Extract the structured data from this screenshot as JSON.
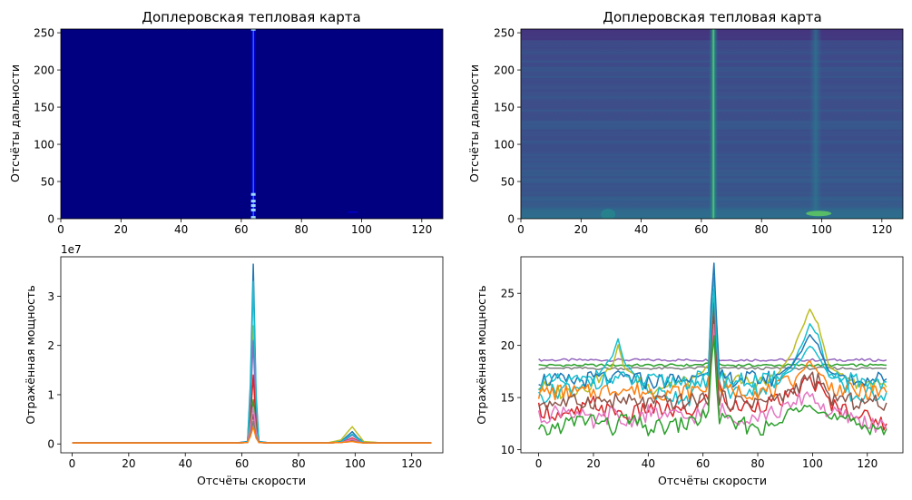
{
  "chart_data": [
    {
      "type": "heatmap",
      "title": "Доплеровская тепловая карта",
      "xlabel": "",
      "ylabel": "Отсчёты дальности",
      "xlim": [
        0,
        127
      ],
      "ylim": [
        0,
        255
      ],
      "xticks": [
        "0",
        "20",
        "40",
        "60",
        "80",
        "100",
        "120"
      ],
      "yticks": [
        "0",
        "50",
        "100",
        "150",
        "200",
        "250"
      ],
      "colormap": "jet",
      "background_color": "#000080",
      "features": [
        {
          "doppler_bin": 64,
          "range_bins": [
            0,
            2,
            12,
            18,
            24,
            33,
            255
          ],
          "note": "narrow bright column"
        },
        {
          "doppler_bin": 97,
          "range_bins": [
            8,
            10
          ],
          "note": "weak spot"
        }
      ]
    },
    {
      "type": "heatmap",
      "title": "Доплеровская тепловая карта",
      "xlabel": "",
      "ylabel": "Отсчёты дальности",
      "xlim": [
        0,
        127
      ],
      "ylim": [
        0,
        255
      ],
      "xticks": [
        "0",
        "20",
        "40",
        "60",
        "80",
        "100",
        "120"
      ],
      "yticks": [
        "0",
        "50",
        "100",
        "150",
        "200",
        "250"
      ],
      "colormap": "viridis",
      "background_color": "#3b528b",
      "features": [
        {
          "doppler_bin": 64,
          "range_bins": [
            0,
            255
          ],
          "note": "bright vertical column"
        },
        {
          "doppler_bin": 98,
          "range_bins": [
            0,
            255
          ],
          "note": "faint vertical column"
        },
        {
          "doppler_bin": 99,
          "range_bins": [
            6,
            8
          ],
          "note": "bright spot"
        },
        {
          "doppler_bin": 29,
          "range_bins": [
            0,
            12
          ],
          "note": "faint spot"
        }
      ]
    },
    {
      "type": "line",
      "title": "",
      "xlabel": "Отсчёты скорости",
      "ylabel": "Отражённая мощность",
      "offset_label": "1e7",
      "xlim": [
        -4,
        131
      ],
      "ylim": [
        -0.18,
        3.8
      ],
      "xticks": [
        "0",
        "20",
        "40",
        "60",
        "80",
        "100",
        "120"
      ],
      "yticks": [
        "0",
        "1",
        "2",
        "3"
      ],
      "series_summary": {
        "count": 256,
        "baseline": 0.02,
        "peaks": [
          {
            "x": 64,
            "y": 3.65
          },
          {
            "x": 99,
            "y": 0.35
          },
          {
            "x": 29,
            "y": 0.06
          }
        ]
      },
      "x": [
        0,
        20,
        40,
        58,
        62,
        63,
        64,
        65,
        66,
        70,
        90,
        95,
        97,
        99,
        101,
        103,
        110,
        127
      ],
      "series": [
        {
          "color": "#1f77b4",
          "values": [
            0.02,
            0.02,
            0.02,
            0.02,
            0.05,
            1.2,
            3.65,
            1.0,
            0.05,
            0.02,
            0.02,
            0.05,
            0.15,
            0.25,
            0.12,
            0.04,
            0.02,
            0.02
          ]
        },
        {
          "color": "#bcbd22",
          "values": [
            0.02,
            0.02,
            0.02,
            0.02,
            0.04,
            0.9,
            2.4,
            0.7,
            0.04,
            0.02,
            0.02,
            0.08,
            0.22,
            0.35,
            0.2,
            0.05,
            0.02,
            0.02
          ]
        },
        {
          "color": "#9467bd",
          "values": [
            0.02,
            0.02,
            0.02,
            0.02,
            0.04,
            0.8,
            2.1,
            0.6,
            0.04,
            0.02,
            0.02,
            0.04,
            0.1,
            0.18,
            0.09,
            0.03,
            0.02,
            0.02
          ]
        },
        {
          "color": "#d62728",
          "values": [
            0.02,
            0.02,
            0.02,
            0.02,
            0.03,
            0.5,
            1.4,
            0.4,
            0.03,
            0.02,
            0.02,
            0.03,
            0.07,
            0.12,
            0.06,
            0.03,
            0.02,
            0.02
          ]
        },
        {
          "color": "#17becf",
          "values": [
            0.02,
            0.02,
            0.02,
            0.02,
            0.04,
            1.0,
            3.3,
            0.9,
            0.04,
            0.02,
            0.02,
            0.04,
            0.12,
            0.2,
            0.1,
            0.03,
            0.02,
            0.02
          ]
        },
        {
          "color": "#2ca02c",
          "values": [
            0.02,
            0.02,
            0.02,
            0.02,
            0.03,
            0.4,
            0.9,
            0.3,
            0.03,
            0.02,
            0.02,
            0.03,
            0.05,
            0.08,
            0.05,
            0.02,
            0.02,
            0.02
          ]
        },
        {
          "color": "#8c564b",
          "values": [
            0.02,
            0.02,
            0.02,
            0.02,
            0.03,
            0.3,
            0.6,
            0.2,
            0.03,
            0.02,
            0.02,
            0.03,
            0.05,
            0.07,
            0.04,
            0.02,
            0.02,
            0.02
          ]
        },
        {
          "color": "#e377c2",
          "values": [
            0.02,
            0.02,
            0.02,
            0.02,
            0.03,
            0.35,
            0.75,
            0.25,
            0.03,
            0.02,
            0.02,
            0.03,
            0.06,
            0.1,
            0.05,
            0.02,
            0.02,
            0.02
          ]
        },
        {
          "color": "#7f7f7f",
          "values": [
            0.02,
            0.02,
            0.02,
            0.02,
            0.03,
            0.2,
            0.45,
            0.15,
            0.03,
            0.02,
            0.02,
            0.03,
            0.04,
            0.06,
            0.04,
            0.02,
            0.02,
            0.02
          ]
        },
        {
          "color": "#ff7f0e",
          "values": [
            0.02,
            0.02,
            0.02,
            0.02,
            0.03,
            0.15,
            0.35,
            0.12,
            0.03,
            0.02,
            0.02,
            0.03,
            0.04,
            0.05,
            0.03,
            0.02,
            0.02,
            0.02
          ]
        }
      ]
    },
    {
      "type": "line",
      "title": "",
      "xlabel": "Отсчёты скорости",
      "ylabel": "Отражённая мощность",
      "xlim": [
        -6.5,
        133
      ],
      "ylim": [
        9.7,
        28.5
      ],
      "xticks": [
        "0",
        "20",
        "40",
        "60",
        "80",
        "100",
        "120"
      ],
      "yticks": [
        "10",
        "15",
        "20",
        "25"
      ],
      "series_summary": {
        "count": 256,
        "level_range": [
          12,
          18.7
        ],
        "peaks": [
          {
            "x": 64,
            "y": 27.8
          },
          {
            "x": 99,
            "y": 23.6
          },
          {
            "x": 29,
            "y": 20.7
          }
        ]
      },
      "x": [
        0,
        10,
        20,
        27,
        29,
        31,
        40,
        55,
        62,
        63,
        64,
        65,
        66,
        70,
        85,
        92,
        96,
        99,
        102,
        106,
        115,
        127
      ],
      "series": [
        {
          "color": "#9467bd",
          "values": [
            18.6,
            18.6,
            18.6,
            18.6,
            18.6,
            18.6,
            18.6,
            18.6,
            18.6,
            19.0,
            20.5,
            19.0,
            18.6,
            18.6,
            18.6,
            18.6,
            18.6,
            18.6,
            18.6,
            18.6,
            18.6,
            18.6
          ]
        },
        {
          "color": "#2ca02c",
          "values": [
            18.1,
            18.1,
            18.1,
            18.1,
            18.1,
            18.1,
            18.1,
            18.1,
            18.2,
            19.5,
            22.0,
            19.0,
            18.1,
            18.1,
            18.1,
            18.1,
            18.1,
            18.1,
            18.1,
            18.1,
            18.1,
            18.1
          ]
        },
        {
          "color": "#7f7f7f",
          "values": [
            17.8,
            17.8,
            17.8,
            17.8,
            17.8,
            17.8,
            17.8,
            17.8,
            17.9,
            19.0,
            21.0,
            18.7,
            17.8,
            17.8,
            17.8,
            17.8,
            17.8,
            17.8,
            17.8,
            17.8,
            17.8,
            17.8
          ]
        },
        {
          "color": "#bcbd22",
          "values": [
            16.0,
            15.5,
            16.5,
            18.0,
            20.0,
            18.0,
            16.0,
            16.5,
            18.0,
            23.0,
            25.0,
            22.0,
            17.0,
            16.5,
            16.5,
            19.0,
            21.5,
            23.6,
            22.0,
            18.0,
            16.5,
            16.0
          ]
        },
        {
          "color": "#17becf",
          "values": [
            15.0,
            16.0,
            16.5,
            19.0,
            20.7,
            18.5,
            15.5,
            15.0,
            17.0,
            24.0,
            26.5,
            21.0,
            16.0,
            15.5,
            16.0,
            18.0,
            20.0,
            22.0,
            21.0,
            17.0,
            15.0,
            15.5
          ]
        },
        {
          "color": "#1f77b4",
          "values": [
            16.8,
            16.5,
            16.8,
            17.0,
            17.5,
            17.0,
            16.5,
            16.8,
            17.5,
            24.0,
            27.8,
            22.0,
            17.0,
            16.8,
            16.8,
            18.0,
            19.5,
            21.0,
            20.0,
            17.5,
            16.8,
            16.8
          ]
        },
        {
          "color": "#d62728",
          "values": [
            14.0,
            13.0,
            14.5,
            13.5,
            14.0,
            13.0,
            14.0,
            13.5,
            15.0,
            20.0,
            23.0,
            18.0,
            16.0,
            14.0,
            14.5,
            15.0,
            16.0,
            17.0,
            16.0,
            14.5,
            13.5,
            12.5
          ]
        },
        {
          "color": "#ff7f0e",
          "values": [
            15.5,
            15.5,
            15.5,
            15.8,
            16.0,
            15.8,
            15.5,
            15.6,
            16.0,
            21.0,
            24.5,
            19.0,
            16.0,
            15.6,
            15.6,
            16.5,
            17.5,
            18.5,
            17.5,
            16.0,
            15.6,
            15.5
          ]
        },
        {
          "color": "#e377c2",
          "values": [
            13.0,
            14.0,
            12.5,
            13.5,
            13.0,
            12.5,
            13.5,
            13.0,
            14.0,
            19.0,
            22.0,
            17.0,
            14.0,
            13.0,
            13.5,
            14.0,
            15.0,
            15.5,
            14.5,
            13.5,
            13.0,
            12.0
          ]
        },
        {
          "color": "#8c564b",
          "values": [
            14.5,
            14.5,
            14.7,
            14.6,
            14.8,
            14.6,
            14.5,
            14.6,
            15.0,
            20.0,
            24.0,
            18.5,
            15.0,
            14.6,
            14.7,
            15.5,
            16.5,
            17.0,
            16.5,
            15.0,
            14.6,
            14.5
          ]
        },
        {
          "color": "#2ca02c",
          "values": [
            11.5,
            12.5,
            13.0,
            12.0,
            12.5,
            13.0,
            12.0,
            12.5,
            13.5,
            18.0,
            21.0,
            16.0,
            13.0,
            12.5,
            12.0,
            13.5,
            14.5,
            15.0,
            14.0,
            13.0,
            12.5,
            12.0
          ]
        },
        {
          "color": "#17becf",
          "values": [
            16.5,
            16.5,
            16.6,
            16.7,
            16.9,
            16.7,
            16.5,
            16.6,
            17.0,
            22.0,
            25.5,
            20.0,
            16.8,
            16.6,
            16.6,
            17.5,
            18.8,
            20.0,
            19.0,
            17.0,
            16.6,
            16.5
          ]
        }
      ]
    }
  ]
}
